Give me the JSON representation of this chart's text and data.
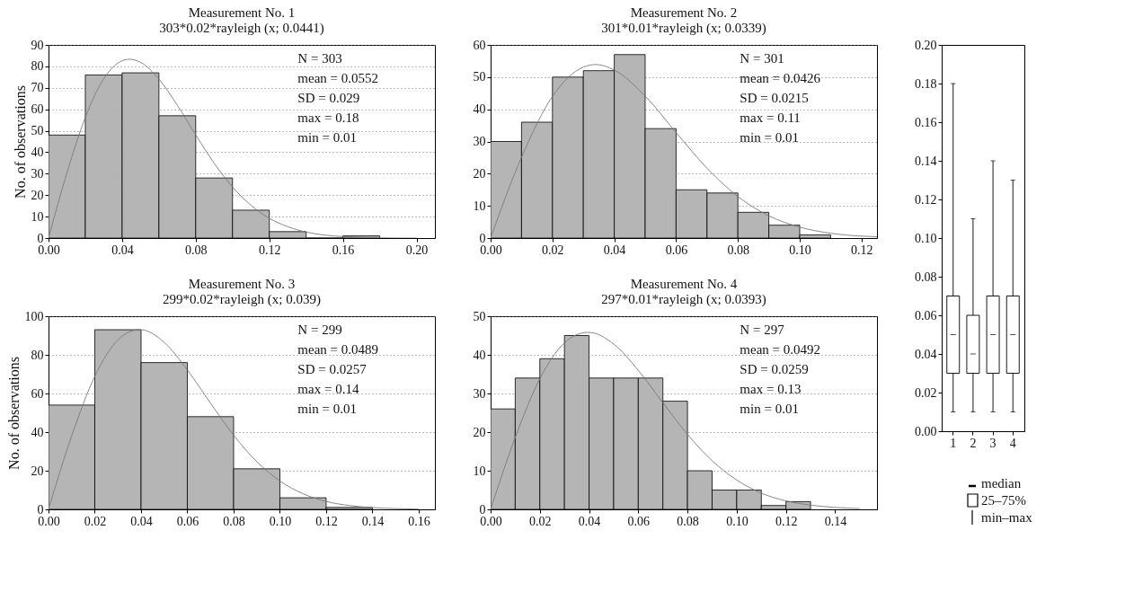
{
  "chart_data": [
    {
      "type": "histogram",
      "title": "Measurement No. 1",
      "subtitle": "303*0.02*rayleigh (x; 0.0441)",
      "ylabel": "No. of observations",
      "bins": [
        0,
        0.02,
        0.04,
        0.06,
        0.08,
        0.1,
        0.12,
        0.14,
        0.16,
        0.18
      ],
      "values": [
        48,
        76,
        77,
        57,
        28,
        13,
        3,
        0,
        1
      ],
      "color": "#b5b5b5",
      "series": [
        {
          "type": "line",
          "color": "#7a7a7a",
          "x": [
            0,
            0.01,
            0.02,
            0.03,
            0.04,
            0.0441,
            0.05,
            0.06,
            0.07,
            0.08,
            0.09,
            0.1,
            0.11,
            0.12,
            0.13,
            0.14,
            0.15,
            0.16,
            0.17,
            0.18,
            0.19,
            0.2
          ],
          "values": [
            0,
            30.4,
            56.2,
            74.2,
            82.6,
            83.3,
            81.9,
            74.1,
            61.9,
            48.1,
            34.9,
            23.8,
            15.3,
            9.2,
            5.3,
            2.8,
            1.4,
            0.7,
            0.3,
            0.1,
            0,
            0
          ]
        }
      ],
      "xlim": [
        0,
        0.21
      ],
      "xticks": [
        {
          "value": 0,
          "label": "0.00"
        },
        0.04,
        0.08,
        0.12,
        0.16,
        {
          "value": 0.2,
          "label": "0.20"
        }
      ],
      "ylim": [
        0,
        90
      ],
      "yticks": [
        0,
        10,
        20,
        30,
        40,
        50,
        60,
        70,
        80,
        90
      ],
      "grid": "y",
      "annotations": [
        "N = 303",
        "mean = 0.0552",
        "SD = 0.029",
        "max = 0.18",
        "min = 0.01"
      ]
    },
    {
      "type": "histogram",
      "title": "Measurement No. 2",
      "subtitle": "301*0.01*rayleigh (x; 0.0339)",
      "bins": [
        0,
        0.01,
        0.02,
        0.03,
        0.04,
        0.05,
        0.06,
        0.07,
        0.08,
        0.09,
        0.1,
        0.11
      ],
      "values": [
        30,
        36,
        50,
        52,
        57,
        34,
        15,
        14,
        8,
        4,
        1
      ],
      "color": "#b5b5b5",
      "series": [
        {
          "type": "line",
          "color": "#7a7a7a",
          "x": [
            0,
            0.01,
            0.02,
            0.03,
            0.0339,
            0.04,
            0.05,
            0.06,
            0.07,
            0.08,
            0.09,
            0.1,
            0.11,
            0.12,
            0.125
          ],
          "values": [
            0,
            25.1,
            44.0,
            53.1,
            53.9,
            52.2,
            44.1,
            32.8,
            21.7,
            12.9,
            6.9,
            3.4,
            1.5,
            0.6,
            0.4
          ]
        }
      ],
      "xlim": [
        0,
        0.125
      ],
      "xticks": [
        {
          "value": 0,
          "label": "0.00"
        },
        0.02,
        0.04,
        0.06,
        0.08,
        {
          "value": 0.1,
          "label": "0.10"
        },
        0.12
      ],
      "ylim": [
        0,
        60
      ],
      "yticks": [
        0,
        10,
        20,
        30,
        40,
        50,
        60
      ],
      "grid": "y",
      "annotations": [
        "N = 301",
        "mean = 0.0426",
        "SD = 0.0215",
        "max = 0.11",
        "min = 0.01"
      ]
    },
    {
      "type": "box",
      "categories": [
        "1",
        "2",
        "3",
        "4"
      ],
      "boxes": [
        {
          "low": 0.01,
          "q1": 0.03,
          "median": 0.05,
          "q3": 0.07,
          "high": 0.18
        },
        {
          "low": 0.01,
          "q1": 0.03,
          "median": 0.04,
          "q3": 0.06,
          "high": 0.11
        },
        {
          "low": 0.01,
          "q1": 0.03,
          "median": 0.05,
          "q3": 0.07,
          "high": 0.14
        },
        {
          "low": 0.01,
          "q1": 0.03,
          "median": 0.05,
          "q3": 0.07,
          "high": 0.13
        }
      ],
      "ylim": [
        0,
        0.2
      ],
      "yticks": [
        {
          "value": 0,
          "label": "0.00"
        },
        0.02,
        0.04,
        0.06,
        0.08,
        {
          "value": 0.1,
          "label": "0.10"
        },
        0.12,
        0.14,
        0.16,
        0.18,
        {
          "value": 0.2,
          "label": "0.20"
        }
      ],
      "annotations": [
        "median",
        "25–75%",
        "min–max"
      ]
    },
    {
      "type": "histogram",
      "title": "Measurement No. 3",
      "subtitle": "299*0.02*rayleigh (x; 0.039)",
      "ylabel": "No. of observations",
      "bins": [
        0,
        0.02,
        0.04,
        0.06,
        0.08,
        0.1,
        0.12,
        0.14
      ],
      "values": [
        54,
        93,
        76,
        48,
        21,
        6,
        1
      ],
      "color": "#b5b5b5",
      "series": [
        {
          "type": "line",
          "color": "#7a7a7a",
          "x": [
            0,
            0.01,
            0.02,
            0.03,
            0.039,
            0.04,
            0.05,
            0.06,
            0.07,
            0.08,
            0.09,
            0.1,
            0.11,
            0.12,
            0.13,
            0.14,
            0.15,
            0.16
          ],
          "values": [
            0,
            38.0,
            68.9,
            87.7,
            93.0,
            93.0,
            86.4,
            72.2,
            55.0,
            38.4,
            24.7,
            14.7,
            8.1,
            4.1,
            2.0,
            0.9,
            0.4,
            0.1
          ]
        }
      ],
      "xlim": [
        0,
        0.167
      ],
      "xticks": [
        {
          "value": 0,
          "label": "0.00"
        },
        0.02,
        0.04,
        0.06,
        0.08,
        {
          "value": 0.1,
          "label": "0.10"
        },
        0.12,
        0.14,
        0.16
      ],
      "ylim": [
        0,
        100
      ],
      "yticks": [
        0,
        20,
        40,
        60,
        80,
        100
      ],
      "grid": "y",
      "annotations": [
        "N = 299",
        "mean = 0.0489",
        "SD = 0.0257",
        "max = 0.14",
        "min = 0.01"
      ]
    },
    {
      "type": "histogram",
      "title": "Measurement No. 4",
      "subtitle": "297*0.01*rayleigh (x; 0.0393)",
      "bins": [
        0,
        0.01,
        0.02,
        0.03,
        0.04,
        0.05,
        0.06,
        0.07,
        0.08,
        0.09,
        0.1,
        0.11,
        0.12,
        0.13
      ],
      "values": [
        26,
        34,
        39,
        45,
        34,
        34,
        34,
        28,
        10,
        5,
        5,
        1,
        2
      ],
      "color": "#b5b5b5",
      "series": [
        {
          "type": "line",
          "color": "#7a7a7a",
          "x": [
            0,
            0.01,
            0.02,
            0.03,
            0.0393,
            0.04,
            0.05,
            0.06,
            0.07,
            0.08,
            0.09,
            0.1,
            0.11,
            0.12,
            0.13,
            0.14,
            0.15
          ],
          "values": [
            0,
            18.6,
            33.8,
            43.1,
            45.8,
            45.8,
            42.8,
            36.0,
            27.6,
            19.4,
            12.6,
            7.6,
            4.2,
            2.2,
            1.1,
            0.5,
            0.2
          ]
        }
      ],
      "xlim": [
        0,
        0.157
      ],
      "xticks": [
        {
          "value": 0,
          "label": "0.00"
        },
        0.02,
        0.04,
        0.06,
        0.08,
        {
          "value": 0.1,
          "label": "0.10"
        },
        0.12,
        0.14
      ],
      "ylim": [
        0,
        50
      ],
      "yticks": [
        0,
        10,
        20,
        30,
        40,
        50
      ],
      "grid": "y",
      "annotations": [
        "N = 297",
        "mean = 0.0492",
        "SD = 0.0259",
        "max = 0.13",
        "min = 0.01"
      ]
    }
  ]
}
